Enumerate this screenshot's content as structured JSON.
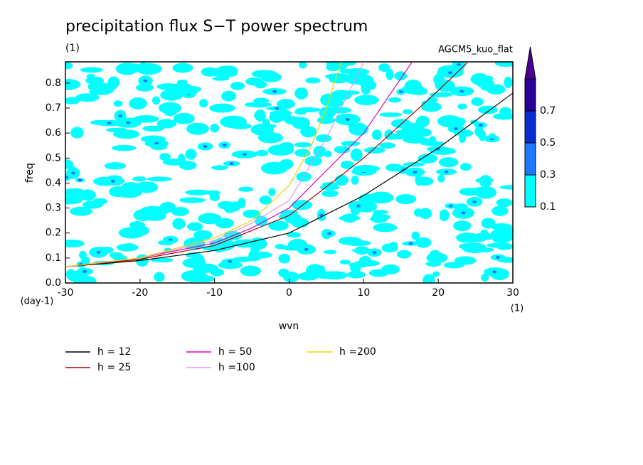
{
  "chart_data": {
    "type": "line",
    "title": "precipitation flux S−T power spectrum",
    "subtitle": "(1)",
    "annotation": "AGCM5_kuo_flat",
    "xlabel": "wvn",
    "ylabel": "freq",
    "xunit": "(1)",
    "yunit": "(day-1)",
    "xlim": [
      -30,
      30
    ],
    "xticks": [
      -30,
      -20,
      -10,
      0,
      10,
      20,
      30
    ],
    "ylim": [
      0,
      0.885
    ],
    "yticks": [
      {
        "value": 0,
        "label": "0.0"
      },
      0.1,
      0.2,
      0.3,
      0.4,
      0.5,
      0.6,
      0.7,
      0.8
    ],
    "colorbar": {
      "levels": [
        0.1,
        0.3,
        0.5,
        0.7
      ],
      "colors": [
        "#00ffff",
        "#1e78ff",
        "#0a2dd2",
        "#2a0099"
      ],
      "extend_color": "#4b0090"
    },
    "series": [
      {
        "name": "h = 12",
        "color": "#000000",
        "x": [
          -30,
          -20,
          -10,
          0,
          10,
          20,
          30
        ],
        "values": [
          0.065,
          0.09,
          0.13,
          0.2,
          0.35,
          0.54,
          0.76
        ]
      },
      {
        "name": "h = 25",
        "color": "#b00000",
        "x": [
          -30,
          -20,
          -10,
          0,
          10,
          20,
          24
        ],
        "values": [
          0.065,
          0.095,
          0.15,
          0.27,
          0.5,
          0.77,
          0.885
        ]
      },
      {
        "name": "h = 50",
        "color": "#e000c0",
        "x": [
          -30,
          -20,
          -10,
          -5,
          0,
          5,
          10,
          16.5
        ],
        "values": [
          0.065,
          0.1,
          0.16,
          0.22,
          0.3,
          0.45,
          0.6,
          0.885
        ]
      },
      {
        "name": "h =100",
        "color": "#dd99ee",
        "x": [
          -30,
          -20,
          -10,
          -5,
          0,
          5,
          10
        ],
        "values": [
          0.065,
          0.1,
          0.17,
          0.24,
          0.33,
          0.58,
          0.885
        ]
      },
      {
        "name": "h =200",
        "color": "#f0d000",
        "x": [
          -30,
          -20,
          -10,
          -5,
          0,
          3,
          5,
          7
        ],
        "values": [
          0.065,
          0.1,
          0.18,
          0.25,
          0.39,
          0.55,
          0.7,
          0.885
        ]
      }
    ]
  }
}
